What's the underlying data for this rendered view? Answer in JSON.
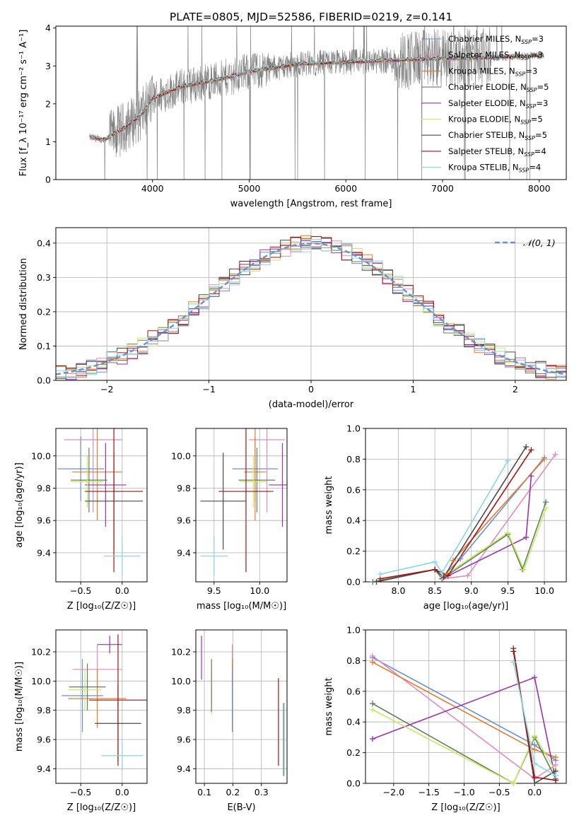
{
  "figure": {
    "title": "PLATE=0805, MJD=52586, FIBERID=0219, z=0.141"
  },
  "colors": {
    "Chabrier MILES": "#6c8ecf",
    "Salpeter MILES": "#e38abf",
    "Kroupa MILES": "#e87b2a",
    "Chabrier ELODIE": "#5f7f60",
    "Salpeter ELODIE": "#9933aa",
    "Kroupa ELODIE": "#c9ea5f",
    "Chabrier STELIB": "#4a4a4a",
    "Salpeter STELIB": "#aa1111",
    "Kroupa STELIB": "#86d8e0",
    "data": "#808080",
    "normal": "#6a8fd3"
  },
  "chart_data": [
    {
      "id": "spectrum",
      "type": "line",
      "xlabel": "wavelength [Angstrom, rest frame]",
      "ylabel": "Flux [f_λ 10⁻¹⁷ erg cm⁻² s⁻¹ A⁻¹]",
      "xlim": [
        3000,
        8280
      ],
      "ylim": [
        0,
        4.05
      ],
      "xticks": [
        4000,
        5000,
        6000,
        7000,
        8000
      ],
      "yticks": [
        0,
        1,
        2,
        3,
        4
      ],
      "grid": false,
      "legend": "upper right",
      "data_x_range": [
        3350,
        8050
      ],
      "data_y_anchors": [
        [
          3350,
          1.12
        ],
        [
          3500,
          1.05
        ],
        [
          3700,
          1.35
        ],
        [
          3900,
          1.75
        ],
        [
          4000,
          2.15
        ],
        [
          4300,
          2.45
        ],
        [
          4700,
          2.65
        ],
        [
          5000,
          2.85
        ],
        [
          5500,
          3.05
        ],
        [
          6000,
          3.1
        ],
        [
          6500,
          3.15
        ],
        [
          7000,
          3.2
        ],
        [
          7500,
          3.22
        ],
        [
          8050,
          3.28
        ]
      ],
      "series": [
        {
          "name": "Chabrier MILES",
          "nssp": 3
        },
        {
          "name": "Salpeter MILES",
          "nssp": 3
        },
        {
          "name": "Kroupa MILES",
          "nssp": 3
        },
        {
          "name": "Chabrier ELODIE",
          "nssp": 5
        },
        {
          "name": "Salpeter ELODIE",
          "nssp": 3
        },
        {
          "name": "Kroupa ELODIE",
          "nssp": 5
        },
        {
          "name": "Chabrier STELIB",
          "nssp": 5
        },
        {
          "name": "Salpeter STELIB",
          "nssp": 4
        },
        {
          "name": "Kroupa STELIB",
          "nssp": 4
        }
      ]
    },
    {
      "id": "residuals",
      "type": "histogram",
      "xlabel": "(data-model)/error",
      "ylabel": "Normed distribution",
      "xlim": [
        -2.5,
        2.5
      ],
      "ylim": [
        0,
        0.445
      ],
      "xticks": [
        -2,
        -1,
        0,
        1,
        2
      ],
      "yticks": [
        0.0,
        0.1,
        0.2,
        0.3,
        0.4
      ],
      "grid": true,
      "legend": "upper right",
      "normal_label": "𝒩(0, 1)",
      "bin_width": 0.1,
      "bin_range": [
        -2.5,
        2.5
      ],
      "series_count": 9
    },
    {
      "id": "age-vs-z",
      "type": "errorbar",
      "xlabel": "Z [log₁₀(Z/Z☉)]",
      "ylabel": "age  [log₁₀(age/yr)]",
      "xlim": [
        -0.8,
        0.3
      ],
      "ylim": [
        9.22,
        10.17
      ],
      "xticks": [
        -0.5,
        0.0
      ],
      "yticks": [
        9.4,
        9.6,
        9.8,
        10.0
      ],
      "grid": true,
      "points": [
        {
          "series": "Chabrier MILES",
          "x": -0.5,
          "xerr": 0.28,
          "y": 9.92,
          "yerr": 0.2
        },
        {
          "series": "Salpeter MILES",
          "x": -0.35,
          "xerr": 0.35,
          "y": 10.1,
          "yerr": 0.45
        },
        {
          "series": "Kroupa MILES",
          "x": -0.3,
          "xerr": 0.3,
          "y": 9.9,
          "yerr": 0.3
        },
        {
          "series": "Chabrier ELODIE",
          "x": -0.4,
          "xerr": 0.22,
          "y": 9.85,
          "yerr": 0.2
        },
        {
          "series": "Salpeter ELODIE",
          "x": -0.2,
          "xerr": 0.25,
          "y": 9.82,
          "yerr": 0.26
        },
        {
          "series": "Kroupa ELODIE",
          "x": -0.42,
          "xerr": 0.2,
          "y": 9.84,
          "yerr": 0.16
        },
        {
          "series": "Chabrier STELIB",
          "x": -0.1,
          "xerr": 0.35,
          "y": 9.72,
          "yerr": 0.3
        },
        {
          "series": "Salpeter STELIB",
          "x": -0.1,
          "xerr": 0.35,
          "y": 9.78,
          "yerr": 0.5
        },
        {
          "series": "Kroupa STELIB",
          "x": 0.0,
          "xerr": 0.22,
          "y": 9.38,
          "yerr": 0.12
        }
      ]
    },
    {
      "id": "age-vs-mass",
      "type": "errorbar",
      "xlabel": "mass [log₁₀(M/M☉)]",
      "ylabel": "",
      "xlim": [
        9.3,
        10.3
      ],
      "ylim": [
        9.22,
        10.17
      ],
      "xticks": [
        9.5,
        10.0
      ],
      "yticks": [
        9.4,
        9.6,
        9.8,
        10.0
      ],
      "grid": true,
      "points": [
        {
          "series": "Chabrier MILES",
          "x": 9.95,
          "xerr": 0.25,
          "y": 9.92,
          "yerr": 0.2
        },
        {
          "series": "Salpeter MILES",
          "x": 10.08,
          "xerr": 0.2,
          "y": 10.1,
          "yerr": 0.45
        },
        {
          "series": "Kroupa MILES",
          "x": 9.95,
          "xerr": 0.12,
          "y": 9.9,
          "yerr": 0.3
        },
        {
          "series": "Chabrier ELODIE",
          "x": 9.97,
          "xerr": 0.2,
          "y": 9.85,
          "yerr": 0.2
        },
        {
          "series": "Salpeter ELODIE",
          "x": 10.25,
          "xerr": 0.15,
          "y": 9.82,
          "yerr": 0.26
        },
        {
          "series": "Kroupa ELODIE",
          "x": 9.93,
          "xerr": 0.15,
          "y": 9.84,
          "yerr": 0.16
        },
        {
          "series": "Chabrier STELIB",
          "x": 9.6,
          "xerr": 0.25,
          "y": 9.72,
          "yerr": 0.3
        },
        {
          "series": "Salpeter STELIB",
          "x": 9.85,
          "xerr": 0.3,
          "y": 9.78,
          "yerr": 0.5
        },
        {
          "series": "Kroupa STELIB",
          "x": 9.5,
          "xerr": 0.15,
          "y": 9.38,
          "yerr": 0.12
        }
      ]
    },
    {
      "id": "weight-vs-age",
      "type": "line",
      "xlabel": "age  [log₁₀(age/yr)]",
      "ylabel": "mass weight",
      "xlim": [
        7.55,
        10.3
      ],
      "ylim": [
        0,
        1.0
      ],
      "xticks": [
        8.0,
        8.5,
        9.0,
        9.5,
        10.0
      ],
      "yticks": [
        0.0,
        0.2,
        0.4,
        0.6,
        0.8,
        1.0
      ],
      "grid": true,
      "series": [
        {
          "name": "Chabrier MILES",
          "x": [
            8.6,
            8.85,
            10.0
          ],
          "y": [
            0.03,
            0.15,
            0.81
          ]
        },
        {
          "name": "Salpeter MILES",
          "x": [
            8.6,
            8.95,
            10.15
          ],
          "y": [
            0.02,
            0.04,
            0.83
          ]
        },
        {
          "name": "Kroupa MILES",
          "x": [
            8.65,
            8.75,
            10.0
          ],
          "y": [
            0.04,
            0.14,
            0.8
          ]
        },
        {
          "name": "Chabrier ELODIE",
          "x": [
            7.65,
            8.5,
            8.6,
            9.5,
            9.7,
            10.02
          ],
          "y": [
            0.0,
            0.08,
            0.02,
            0.31,
            0.08,
            0.52
          ]
        },
        {
          "name": "Salpeter ELODIE",
          "x": [
            8.6,
            9.75,
            9.82
          ],
          "y": [
            0.02,
            0.29,
            0.69
          ]
        },
        {
          "name": "Kroupa ELODIE",
          "x": [
            8.6,
            9.5,
            9.72,
            10.02
          ],
          "y": [
            0.03,
            0.32,
            0.08,
            0.48
          ]
        },
        {
          "name": "Chabrier STELIB",
          "x": [
            7.7,
            8.5,
            8.62,
            9.75
          ],
          "y": [
            0.0,
            0.08,
            0.03,
            0.88
          ]
        },
        {
          "name": "Salpeter STELIB",
          "x": [
            7.75,
            8.5,
            8.68,
            9.82
          ],
          "y": [
            0.02,
            0.08,
            0.04,
            0.86
          ]
        },
        {
          "name": "Kroupa STELIB",
          "x": [
            7.75,
            8.5,
            8.6,
            9.5
          ],
          "y": [
            0.05,
            0.13,
            0.06,
            0.79
          ]
        }
      ]
    },
    {
      "id": "mass-vs-z",
      "type": "errorbar",
      "xlabel": "Z [log₁₀(Z/Z☉)]",
      "ylabel": "mass [log₁₀(M/M☉)]",
      "xlim": [
        -0.8,
        0.3
      ],
      "ylim": [
        9.3,
        10.35
      ],
      "xticks": [
        -0.5,
        0.0
      ],
      "yticks": [
        9.4,
        9.6,
        9.8,
        10.0,
        10.2
      ],
      "grid": true,
      "points": [
        {
          "series": "Chabrier MILES",
          "x": -0.48,
          "xerr": 0.25,
          "y": 9.9,
          "yerr": 0.25
        },
        {
          "series": "Salpeter MILES",
          "x": -0.3,
          "xerr": 0.3,
          "y": 10.08,
          "yerr": 0.17
        },
        {
          "series": "Kroupa MILES",
          "x": -0.3,
          "xerr": 0.35,
          "y": 9.88,
          "yerr": 0.2
        },
        {
          "series": "Chabrier ELODIE",
          "x": -0.42,
          "xerr": 0.22,
          "y": 9.96,
          "yerr": 0.16
        },
        {
          "series": "Salpeter ELODIE",
          "x": -0.15,
          "xerr": 0.15,
          "y": 10.25,
          "yerr": 0.06
        },
        {
          "series": "Kroupa ELODIE",
          "x": -0.45,
          "xerr": 0.2,
          "y": 9.94,
          "yerr": 0.14
        },
        {
          "series": "Chabrier STELIB",
          "x": -0.05,
          "xerr": 0.28,
          "y": 9.71,
          "yerr": 0.26
        },
        {
          "series": "Salpeter STELIB",
          "x": -0.05,
          "xerr": 0.35,
          "y": 9.87,
          "yerr": 0.45
        },
        {
          "series": "Kroupa STELIB",
          "x": 0.0,
          "xerr": 0.25,
          "y": 9.49,
          "yerr": 0.1
        }
      ]
    },
    {
      "id": "mass-vs-ebv",
      "type": "errorbar",
      "xlabel": "E(B-V)",
      "ylabel": "",
      "xlim": [
        0.07,
        0.39
      ],
      "ylim": [
        9.3,
        10.35
      ],
      "xticks": [
        0.1,
        0.2,
        0.3
      ],
      "yticks": [
        9.4,
        9.6,
        9.8,
        10.0,
        10.2
      ],
      "grid": true,
      "points": [
        {
          "series": "Salpeter ELODIE",
          "x": 0.09,
          "xerr": 0.0,
          "y": 10.16,
          "yerr": 0.15
        },
        {
          "series": "Kroupa ELODIE",
          "x": 0.125,
          "xerr": 0.0,
          "y": 9.96,
          "yerr": 0.19
        },
        {
          "series": "Chabrier ELODIE",
          "x": 0.125,
          "xerr": 0.0,
          "y": 9.97,
          "yerr": 0.18
        },
        {
          "series": "Salpeter MILES",
          "x": 0.198,
          "xerr": 0.0,
          "y": 10.09,
          "yerr": 0.16
        },
        {
          "series": "Kroupa MILES",
          "x": 0.198,
          "xerr": 0.0,
          "y": 9.9,
          "yerr": 0.25
        },
        {
          "series": "Chabrier MILES",
          "x": 0.198,
          "xerr": 0.0,
          "y": 9.88,
          "yerr": 0.22
        },
        {
          "series": "Salpeter STELIB",
          "x": 0.36,
          "xerr": 0.0,
          "y": 9.72,
          "yerr": 0.3
        },
        {
          "series": "Chabrier STELIB",
          "x": 0.378,
          "xerr": 0.0,
          "y": 9.6,
          "yerr": 0.25
        },
        {
          "series": "Kroupa STELIB",
          "x": 0.38,
          "xerr": 0.0,
          "y": 9.6,
          "yerr": 0.25
        }
      ]
    },
    {
      "id": "weight-vs-z",
      "type": "line",
      "xlabel": "Z [log₁₀(Z/Z☉)]",
      "ylabel": "mass weight",
      "xlim": [
        -2.4,
        0.45
      ],
      "ylim": [
        0,
        1.0
      ],
      "xticks": [
        -2.0,
        -1.5,
        -1.0,
        -0.5,
        0.0
      ],
      "yticks": [
        0.0,
        0.2,
        0.4,
        0.6,
        0.8,
        1.0
      ],
      "grid": true,
      "series": [
        {
          "name": "Chabrier MILES",
          "x": [
            -2.3,
            0.0,
            0.3
          ],
          "y": [
            0.82,
            0.25,
            0.15
          ]
        },
        {
          "name": "Salpeter MILES",
          "x": [
            -2.3,
            0.0,
            0.3
          ],
          "y": [
            0.83,
            0.03,
            0.12
          ]
        },
        {
          "name": "Kroupa MILES",
          "x": [
            -2.3,
            0.0,
            0.3
          ],
          "y": [
            0.79,
            0.22,
            0.17
          ]
        },
        {
          "name": "Chabrier ELODIE",
          "x": [
            -2.3,
            -0.3,
            0.0,
            0.3
          ],
          "y": [
            0.52,
            0.0,
            0.3,
            0.03
          ]
        },
        {
          "name": "Salpeter ELODIE",
          "x": [
            -2.3,
            0.0,
            0.3
          ],
          "y": [
            0.29,
            0.69,
            0.02
          ]
        },
        {
          "name": "Kroupa ELODIE",
          "x": [
            -2.3,
            -0.3,
            0.0,
            0.3
          ],
          "y": [
            0.48,
            0.0,
            0.31,
            0.08
          ]
        },
        {
          "name": "Chabrier STELIB",
          "x": [
            -0.3,
            0.0,
            0.3
          ],
          "y": [
            0.88,
            0.0,
            0.08
          ]
        },
        {
          "name": "Salpeter STELIB",
          "x": [
            -0.3,
            0.0,
            0.3
          ],
          "y": [
            0.86,
            0.04,
            0.02
          ]
        },
        {
          "name": "Kroupa STELIB",
          "x": [
            -0.3,
            0.0,
            0.3
          ],
          "y": [
            0.79,
            0.13,
            0.05
          ]
        }
      ]
    }
  ]
}
